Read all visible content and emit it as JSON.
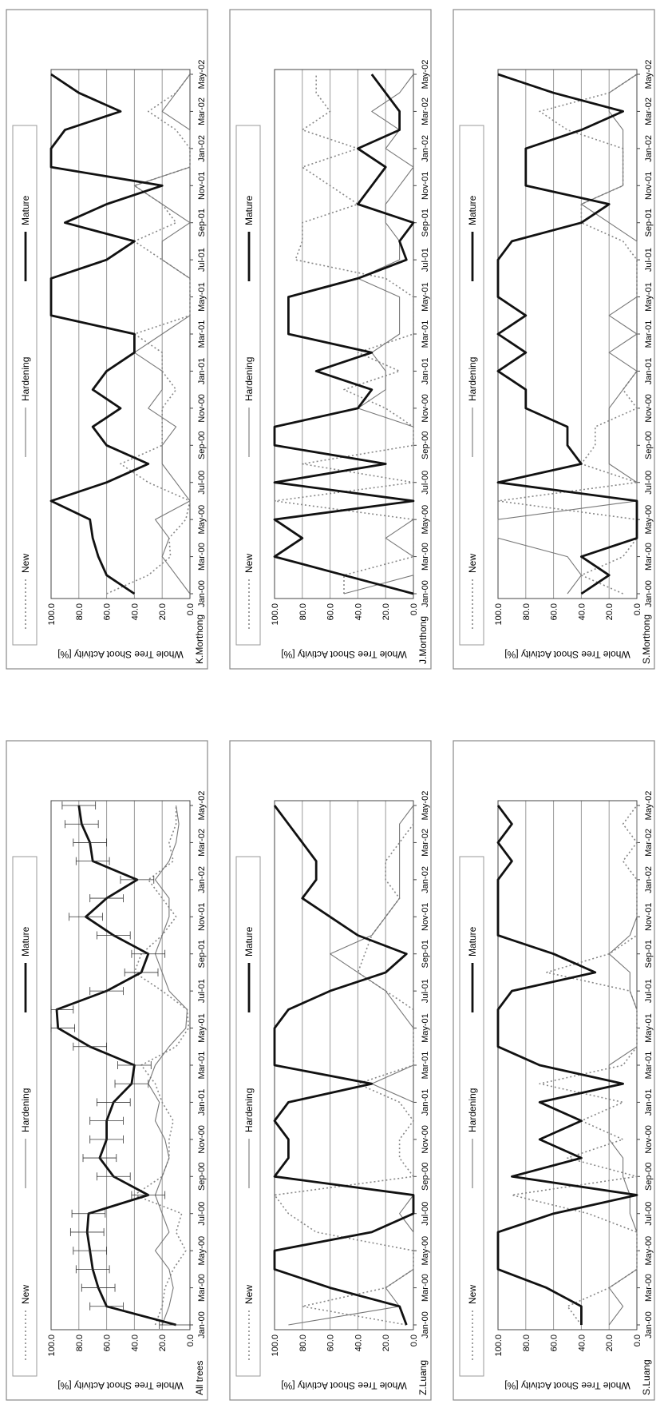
{
  "legend": {
    "new": "New",
    "hardening": "Hardening",
    "mature": "Mature"
  },
  "ylabel": "Whole Tree Shoot Activity [%]",
  "x_ticks": [
    "Jan-00",
    "Mar-00",
    "May-00",
    "Jul-00",
    "Sep-00",
    "Nov-00",
    "Jan-01",
    "Mar-01",
    "May-01",
    "Jul-01",
    "Sep-01",
    "Nov-01",
    "Jan-02",
    "Mar-02",
    "May-02"
  ],
  "y_ticks": [
    "0.0",
    "20.0",
    "40.0",
    "60.0",
    "80.0",
    "100.0"
  ],
  "colors": {
    "mature": "#111111",
    "hardening": "#777777",
    "new": "#888888",
    "grid": "#9a9a9a",
    "frame": "#888888"
  },
  "chart_data": [
    {
      "type": "line",
      "panel_label": "All trees",
      "ylim": [
        0,
        100
      ],
      "grid": true,
      "legend_position": "top",
      "error_bars": true,
      "categories": [
        "Jan-00",
        "Feb-00",
        "Mar-00",
        "Apr-00",
        "May-00",
        "Jun-00",
        "Jul-00",
        "Aug-00",
        "Sep-00",
        "Oct-00",
        "Nov-00",
        "Dec-00",
        "Jan-01",
        "Feb-01",
        "Mar-01",
        "Apr-01",
        "May-01",
        "Jun-01",
        "Jul-01",
        "Aug-01",
        "Sep-01",
        "Oct-01",
        "Nov-01",
        "Dec-01",
        "Jan-02",
        "Feb-02",
        "Mar-02",
        "Apr-02",
        "May-02"
      ],
      "series": [
        {
          "name": "Mature",
          "values": [
            10,
            60,
            66,
            70,
            72,
            74,
            73,
            30,
            55,
            65,
            60,
            60,
            55,
            42,
            40,
            72,
            95,
            96,
            60,
            35,
            30,
            55,
            75,
            60,
            38,
            70,
            72,
            78,
            80
          ]
        },
        {
          "name": "Hardening",
          "values": [
            20,
            15,
            12,
            15,
            25,
            15,
            20,
            25,
            20,
            15,
            18,
            25,
            22,
            30,
            25,
            15,
            3,
            2,
            15,
            20,
            25,
            20,
            15,
            15,
            25,
            15,
            10,
            8,
            10
          ]
        },
        {
          "name": "New",
          "values": [
            25,
            20,
            18,
            12,
            3,
            10,
            6,
            40,
            20,
            15,
            15,
            12,
            20,
            25,
            35,
            10,
            1,
            2,
            20,
            40,
            35,
            20,
            10,
            20,
            30,
            12,
            15,
            10,
            10
          ]
        }
      ]
    },
    {
      "type": "line",
      "panel_label": "Z.Luang",
      "ylim": [
        0,
        100
      ],
      "grid": true,
      "legend_position": "top",
      "categories": [
        "Jan-00",
        "Feb-00",
        "Mar-00",
        "Apr-00",
        "May-00",
        "Jun-00",
        "Jul-00",
        "Aug-00",
        "Sep-00",
        "Oct-00",
        "Nov-00",
        "Dec-00",
        "Jan-01",
        "Feb-01",
        "Mar-01",
        "Apr-01",
        "May-01",
        "Jun-01",
        "Jul-01",
        "Aug-01",
        "Sep-01",
        "Oct-01",
        "Nov-01",
        "Dec-01",
        "Jan-02",
        "Feb-02",
        "Mar-02",
        "Apr-02",
        "May-02"
      ],
      "series": [
        {
          "name": "Mature",
          "values": [
            5,
            10,
            60,
            100,
            100,
            30,
            0,
            0,
            100,
            90,
            90,
            100,
            90,
            30,
            100,
            100,
            100,
            90,
            60,
            20,
            5,
            40,
            60,
            80,
            70,
            70,
            80,
            90,
            100
          ]
        },
        {
          "name": "Hardening",
          "values": [
            90,
            10,
            20,
            0,
            0,
            0,
            10,
            0,
            0,
            0,
            0,
            0,
            0,
            30,
            0,
            0,
            0,
            10,
            20,
            40,
            60,
            30,
            20,
            10,
            10,
            10,
            10,
            10,
            0
          ]
        },
        {
          "name": "New",
          "values": [
            5,
            80,
            20,
            0,
            0,
            70,
            90,
            100,
            0,
            10,
            10,
            0,
            10,
            40,
            0,
            0,
            0,
            0,
            20,
            40,
            35,
            30,
            20,
            10,
            20,
            20,
            10,
            0,
            0
          ]
        }
      ]
    },
    {
      "type": "line",
      "panel_label": "S.Luang",
      "ylim": [
        0,
        100
      ],
      "grid": true,
      "legend_position": "top",
      "categories": [
        "Jan-00",
        "Feb-00",
        "Mar-00",
        "Apr-00",
        "May-00",
        "Jun-00",
        "Jul-00",
        "Aug-00",
        "Sep-00",
        "Oct-00",
        "Nov-00",
        "Dec-00",
        "Jan-01",
        "Feb-01",
        "Mar-01",
        "Apr-01",
        "May-01",
        "Jun-01",
        "Jul-01",
        "Aug-01",
        "Sep-01",
        "Oct-01",
        "Nov-01",
        "Dec-01",
        "Jan-02",
        "Feb-02",
        "Mar-02",
        "Apr-02",
        "May-02"
      ],
      "series": [
        {
          "name": "Mature",
          "values": [
            40,
            40,
            65,
            100,
            100,
            100,
            60,
            0,
            90,
            40,
            70,
            40,
            70,
            10,
            70,
            100,
            100,
            100,
            90,
            30,
            60,
            100,
            100,
            100,
            100,
            90,
            100,
            90,
            100
          ]
        },
        {
          "name": "Hardening",
          "values": [
            20,
            10,
            20,
            0,
            0,
            0,
            5,
            5,
            10,
            10,
            20,
            20,
            20,
            20,
            20,
            0,
            0,
            0,
            5,
            5,
            20,
            5,
            0,
            0,
            0,
            0,
            0,
            0,
            0
          ]
        },
        {
          "name": "New",
          "values": [
            40,
            50,
            20,
            0,
            0,
            0,
            35,
            90,
            0,
            50,
            10,
            40,
            10,
            70,
            10,
            0,
            0,
            0,
            5,
            65,
            20,
            0,
            0,
            0,
            0,
            10,
            0,
            10,
            0
          ]
        }
      ]
    },
    {
      "type": "line",
      "panel_label": "K.Morthong",
      "ylim": [
        0,
        100
      ],
      "grid": true,
      "legend_position": "top",
      "categories": [
        "Jan-00",
        "Feb-00",
        "Mar-00",
        "Apr-00",
        "May-00",
        "Jun-00",
        "Jul-00",
        "Aug-00",
        "Sep-00",
        "Oct-00",
        "Nov-00",
        "Dec-00",
        "Jan-01",
        "Feb-01",
        "Mar-01",
        "Apr-01",
        "May-01",
        "Jun-01",
        "Jul-01",
        "Aug-01",
        "Sep-01",
        "Oct-01",
        "Nov-01",
        "Dec-01",
        "Jan-02",
        "Feb-02",
        "Mar-02",
        "Apr-02",
        "May-02"
      ],
      "series": [
        {
          "name": "Mature",
          "values": [
            40,
            60,
            66,
            70,
            72,
            100,
            60,
            30,
            60,
            70,
            50,
            70,
            60,
            40,
            40,
            100,
            100,
            100,
            60,
            40,
            90,
            60,
            20,
            100,
            100,
            90,
            50,
            80,
            100
          ]
        },
        {
          "name": "Hardening",
          "values": [
            0,
            10,
            20,
            15,
            25,
            0,
            10,
            20,
            20,
            10,
            30,
            20,
            20,
            40,
            20,
            0,
            0,
            0,
            20,
            20,
            0,
            20,
            40,
            0,
            0,
            0,
            20,
            10,
            0
          ]
        },
        {
          "name": "New",
          "values": [
            60,
            30,
            14,
            15,
            3,
            0,
            30,
            50,
            20,
            20,
            20,
            10,
            20,
            20,
            40,
            0,
            0,
            0,
            20,
            40,
            10,
            20,
            40,
            0,
            0,
            10,
            30,
            10,
            0
          ]
        }
      ]
    },
    {
      "type": "line",
      "panel_label": "J.Morthong",
      "ylim": [
        0,
        100
      ],
      "grid": true,
      "legend_position": "top",
      "categories": [
        "Jan-00",
        "Feb-00",
        "Mar-00",
        "Apr-00",
        "May-00",
        "Jun-00",
        "Jul-00",
        "Aug-00",
        "Sep-00",
        "Oct-00",
        "Nov-00",
        "Dec-00",
        "Jan-01",
        "Feb-01",
        "Mar-01",
        "Apr-01",
        "May-01",
        "Jun-01",
        "Jul-01",
        "Aug-01",
        "Sep-01",
        "Oct-01",
        "Nov-01",
        "Dec-01",
        "Jan-02",
        "Feb-02",
        "Mar-02",
        "Apr-02",
        "May-02"
      ],
      "series": [
        {
          "name": "Mature",
          "values": [
            0,
            50,
            100,
            80,
            100,
            0,
            100,
            20,
            100,
            100,
            40,
            30,
            70,
            30,
            90,
            90,
            90,
            40,
            5,
            10,
            0,
            40,
            30,
            20,
            40,
            10,
            10,
            20,
            30
          ]
        },
        {
          "name": "Hardening",
          "values": [
            50,
            0,
            0,
            20,
            0,
            0,
            0,
            0,
            0,
            0,
            40,
            20,
            20,
            30,
            10,
            10,
            10,
            40,
            10,
            10,
            20,
            20,
            10,
            0,
            20,
            10,
            30,
            10,
            0
          ]
        },
        {
          "name": "New",
          "values": [
            50,
            50,
            0,
            0,
            0,
            100,
            0,
            80,
            0,
            0,
            20,
            50,
            10,
            40,
            0,
            0,
            0,
            20,
            85,
            80,
            80,
            40,
            60,
            80,
            40,
            80,
            60,
            70,
            70
          ]
        }
      ]
    },
    {
      "type": "line",
      "panel_label": "S.Morthong",
      "ylim": [
        0,
        100
      ],
      "grid": true,
      "legend_position": "top",
      "categories": [
        "Jan-00",
        "Feb-00",
        "Mar-00",
        "Apr-00",
        "May-00",
        "Jun-00",
        "Jul-00",
        "Aug-00",
        "Sep-00",
        "Oct-00",
        "Nov-00",
        "Dec-00",
        "Jan-01",
        "Feb-01",
        "Mar-01",
        "Apr-01",
        "May-01",
        "Jun-01",
        "Jul-01",
        "Aug-01",
        "Sep-01",
        "Oct-01",
        "Nov-01",
        "Dec-01",
        "Jan-02",
        "Feb-02",
        "Mar-02",
        "Apr-02",
        "May-02"
      ],
      "series": [
        {
          "name": "Mature",
          "values": [
            40,
            20,
            40,
            0,
            0,
            0,
            100,
            40,
            50,
            50,
            80,
            80,
            100,
            80,
            100,
            80,
            100,
            100,
            100,
            90,
            40,
            20,
            80,
            80,
            80,
            40,
            10,
            60,
            100
          ]
        },
        {
          "name": "Hardening",
          "values": [
            50,
            40,
            50,
            100,
            100,
            0,
            0,
            20,
            20,
            20,
            20,
            10,
            0,
            20,
            0,
            20,
            0,
            0,
            0,
            0,
            20,
            40,
            10,
            10,
            10,
            10,
            20,
            20,
            0
          ]
        },
        {
          "name": "New",
          "values": [
            10,
            40,
            10,
            0,
            0,
            100,
            0,
            40,
            30,
            30,
            0,
            10,
            0,
            0,
            0,
            0,
            0,
            0,
            0,
            10,
            40,
            40,
            10,
            10,
            10,
            50,
            70,
            20,
            0
          ]
        }
      ]
    }
  ]
}
